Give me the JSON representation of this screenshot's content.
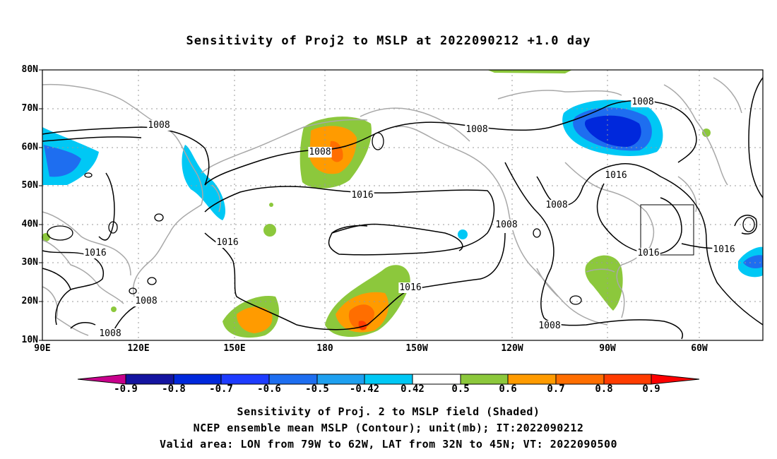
{
  "title": "Sensitivity of Proj2 to MSLP at 2022090212 +1.0 day",
  "lat_labels": [
    "80N",
    "70N",
    "60N",
    "50N",
    "40N",
    "30N",
    "20N",
    "10N"
  ],
  "lon_labels": [
    "90E",
    "120E",
    "150E",
    "180",
    "150W",
    "120W",
    "90W",
    "60W"
  ],
  "contour_labels": [
    "1008",
    "1008",
    "1008",
    "1008",
    "1008",
    "1008",
    "1008",
    "1016",
    "1016",
    "1016",
    "1016",
    "1016",
    "1016",
    "1016",
    "1008",
    "1008",
    "1008"
  ],
  "colorbar": {
    "labels": [
      "-0.9",
      "-0.8",
      "-0.7",
      "-0.6",
      "-0.5",
      "-0.42",
      "0.42",
      "0.5",
      "0.6",
      "0.7",
      "0.8",
      "0.9"
    ],
    "colors": [
      "#c8008c",
      "#1414a0",
      "#0028dc",
      "#1e3cff",
      "#1e6ef0",
      "#1ea0f0",
      "#00c8f5",
      "#ffffff",
      "#8cc83c",
      "#ff9b00",
      "#ff6e00",
      "#ff3c00",
      "#ff0000",
      "#ff96c8"
    ]
  },
  "footer": {
    "line1": "Sensitivity of Proj. 2 to MSLP field (Shaded)",
    "line2": "NCEP ensemble mean MSLP (Contour); unit(mb); IT:2022090212",
    "line3": "Valid area: LON from 79W to 62W, LAT from 32N to 45N; VT: 2022090500"
  }
}
